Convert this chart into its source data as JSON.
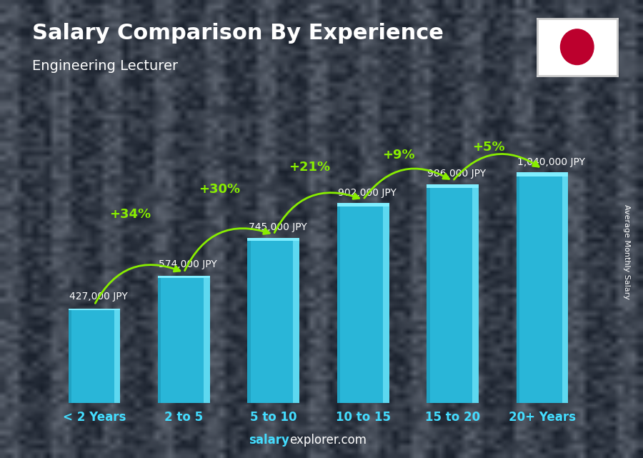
{
  "title": "Salary Comparison By Experience",
  "subtitle": "Engineering Lecturer",
  "categories": [
    "< 2 Years",
    "2 to 5",
    "5 to 10",
    "10 to 15",
    "15 to 20",
    "20+ Years"
  ],
  "values": [
    427000,
    574000,
    745000,
    902000,
    986000,
    1040000
  ],
  "labels": [
    "427,000 JPY",
    "574,000 JPY",
    "745,000 JPY",
    "902,000 JPY",
    "986,000 JPY",
    "1,040,000 JPY"
  ],
  "pct_changes": [
    "+34%",
    "+30%",
    "+21%",
    "+9%",
    "+5%"
  ],
  "bar_color_main": "#29b6d8",
  "bar_color_right": "#5dd8f0",
  "bar_color_left": "#1890b0",
  "bar_color_top": "#80eeff",
  "title_color": "#ffffff",
  "subtitle_color": "#ffffff",
  "label_color": "#ffffff",
  "pct_color": "#88ee00",
  "xlabel_color": "#44ddff",
  "arrow_color": "#88ee00",
  "footer_salary_color": "#44ddff",
  "footer_explorer_color": "#ffffff",
  "right_label": "Average Monthly Salary",
  "footer_text_1": "salary",
  "footer_text_2": "explorer.com",
  "bg_color": "#3a4050",
  "ylim_max": 1280000
}
